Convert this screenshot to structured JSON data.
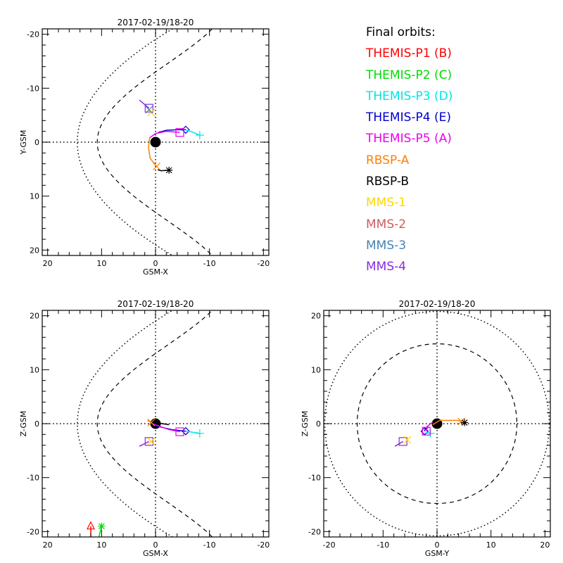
{
  "legend": {
    "title": "Final orbits:",
    "items": [
      {
        "label": "THEMIS-P1 (B)",
        "color": "#ff0000"
      },
      {
        "label": "THEMIS-P2 (C)",
        "color": "#00dd00"
      },
      {
        "label": "THEMIS-P3 (D)",
        "color": "#00e5e5"
      },
      {
        "label": "THEMIS-P4 (E)",
        "color": "#0000cc"
      },
      {
        "label": "THEMIS-P5 (A)",
        "color": "#ee00ee"
      },
      {
        "label": "RBSP-A",
        "color": "#ff8000"
      },
      {
        "label": "RBSP-B",
        "color": "#000000"
      },
      {
        "label": "MMS-1",
        "color": "#ffd700"
      },
      {
        "label": "MMS-2",
        "color": "#cd5c5c"
      },
      {
        "label": "MMS-3",
        "color": "#4682b4"
      },
      {
        "label": "MMS-4",
        "color": "#8a2be2"
      }
    ]
  },
  "chart_data": [
    {
      "type": "line",
      "title": "2017-02-19/18-20",
      "xlabel": "GSM-X",
      "ylabel": "Y-GSM",
      "xlim": [
        21,
        -21
      ],
      "ylim": [
        21,
        -21
      ],
      "xticks": [
        "20",
        "10",
        "0",
        "-10",
        "-20"
      ],
      "yticks": [
        "-20",
        "-10",
        "0",
        "10",
        "20"
      ],
      "boundaries": {
        "magnetopause": "dashed",
        "bow_shock": "dotted"
      },
      "earth": [
        0,
        0
      ],
      "series": [
        {
          "name": "MMS-4",
          "color": "#8a2be2",
          "points": [
            [
              3.0,
              -7.8
            ],
            [
              1.2,
              -6.3
            ]
          ],
          "marker": "square"
        },
        {
          "name": "MMS-1",
          "color": "#ffd700",
          "points": [
            [
              1.0,
              -6.0
            ],
            [
              0.8,
              -5.5
            ]
          ],
          "marker": "x"
        },
        {
          "name": "MMS-3",
          "color": "#4682b4",
          "points": [
            [
              1.2,
              -6.0
            ]
          ],
          "marker": "x"
        },
        {
          "name": "THEMIS-P4 (E)",
          "color": "#0000cc",
          "points": [
            [
              -0.5,
              -1.8
            ],
            [
              -2.0,
              -2.2
            ],
            [
              -4.0,
              -2.3
            ],
            [
              -5.6,
              -2.3
            ]
          ],
          "marker": "diamond"
        },
        {
          "name": "THEMIS-P3 (D)",
          "color": "#00e5e5",
          "points": [
            [
              -5.6,
              -2.3
            ],
            [
              -7.0,
              -1.8
            ],
            [
              -8.2,
              -1.3
            ]
          ],
          "marker": "plus"
        },
        {
          "name": "THEMIS-P5 (A)",
          "color": "#ee00ee",
          "points": [
            [
              1.1,
              -0.8
            ],
            [
              0,
              -1.6
            ],
            [
              -2.0,
              -2.0
            ],
            [
              -4.5,
              -1.8
            ]
          ],
          "marker": "square"
        },
        {
          "name": "RBSP-A",
          "color": "#ff8000",
          "points": [
            [
              1.1,
              -0.8
            ],
            [
              1.3,
              1.0
            ],
            [
              1.0,
              3.0
            ],
            [
              -0.2,
              4.5
            ]
          ],
          "marker": "x"
        },
        {
          "name": "RBSP-B",
          "color": "#000000",
          "points": [
            [
              -0.4,
              5.1
            ],
            [
              -1.0,
              5.3
            ],
            [
              -2.5,
              5.2
            ]
          ],
          "marker": "asterisk"
        }
      ]
    },
    {
      "type": "line",
      "title": "2017-02-19/18-20",
      "xlabel": "GSM-X",
      "ylabel": "Z-GSM",
      "xlim": [
        21,
        -21
      ],
      "ylim": [
        -21,
        21
      ],
      "xticks": [
        "20",
        "10",
        "0",
        "-10",
        "-20"
      ],
      "yticks": [
        "20",
        "10",
        "0",
        "-10",
        "-20"
      ],
      "boundaries": {
        "magnetopause": "dashed",
        "bow_shock": "dotted"
      },
      "earth": [
        0,
        0
      ],
      "series": [
        {
          "name": "THEMIS-P1 (B)",
          "color": "#ff0000",
          "points": [
            [
              12.0,
              -21
            ],
            [
              12.0,
              -19.0
            ]
          ],
          "marker": "triangle"
        },
        {
          "name": "THEMIS-P2 (C)",
          "color": "#00dd00",
          "points": [
            [
              10.5,
              -21
            ],
            [
              10.0,
              -19.0
            ]
          ],
          "marker": "asterisk"
        },
        {
          "name": "MMS-4",
          "color": "#8a2be2",
          "points": [
            [
              3.0,
              -4.2
            ],
            [
              1.2,
              -3.3
            ]
          ],
          "marker": "square"
        },
        {
          "name": "MMS-1",
          "color": "#ffd700",
          "points": [
            [
              0.8,
              -3.3
            ]
          ],
          "marker": "x"
        },
        {
          "name": "THEMIS-P4 (E)",
          "color": "#0000cc",
          "points": [
            [
              0.5,
              -0.3
            ],
            [
              -3.0,
              -1.1
            ],
            [
              -5.6,
              -1.4
            ]
          ],
          "marker": "diamond"
        },
        {
          "name": "THEMIS-P3 (D)",
          "color": "#00e5e5",
          "points": [
            [
              -5.6,
              -1.4
            ],
            [
              -8.2,
              -1.8
            ]
          ],
          "marker": "plus"
        },
        {
          "name": "THEMIS-P5 (A)",
          "color": "#ee00ee",
          "points": [
            [
              0.6,
              0.0
            ],
            [
              -2.5,
              -1.1
            ],
            [
              -4.5,
              -1.5
            ]
          ],
          "marker": "square"
        },
        {
          "name": "RBSP-A",
          "color": "#ff8000",
          "points": [
            [
              1.5,
              0.6
            ],
            [
              0.8,
              0.2
            ]
          ],
          "marker": "x"
        },
        {
          "name": "RBSP-B",
          "color": "#000000",
          "points": [
            [
              0,
              0.2
            ],
            [
              -2.5,
              -0.2
            ]
          ],
          "marker": "none"
        }
      ]
    },
    {
      "type": "line",
      "title": "2017-02-19/18-20",
      "xlabel": "GSM-Y",
      "ylabel": "Z-GSM",
      "xlim": [
        -21,
        21
      ],
      "ylim": [
        -21,
        21
      ],
      "xticks": [
        "-20",
        "-10",
        "0",
        "10",
        "20"
      ],
      "yticks": [
        "20",
        "10",
        "0",
        "-10",
        "-20"
      ],
      "boundaries": {
        "magnetopause": "dashed",
        "bow_shock": "dotted"
      },
      "earth": [
        0,
        0
      ],
      "series": [
        {
          "name": "MMS-4",
          "color": "#8a2be2",
          "points": [
            [
              -7.8,
              -4.2
            ],
            [
              -6.3,
              -3.3
            ]
          ],
          "marker": "square"
        },
        {
          "name": "MMS-1",
          "color": "#ffd700",
          "points": [
            [
              -5.5,
              -3.0
            ]
          ],
          "marker": "x"
        },
        {
          "name": "THEMIS-P4 (E)",
          "color": "#0000cc",
          "points": [
            [
              -1.5,
              -0.6
            ],
            [
              -2.2,
              -1.0
            ],
            [
              -2.3,
              -1.4
            ]
          ],
          "marker": "diamond"
        },
        {
          "name": "THEMIS-P3 (D)",
          "color": "#00e5e5",
          "points": [
            [
              -2.0,
              -1.6
            ],
            [
              -1.2,
              -1.8
            ]
          ],
          "marker": "plus"
        },
        {
          "name": "THEMIS-P5 (A)",
          "color": "#ee00ee",
          "points": [
            [
              -0.8,
              0.3
            ],
            [
              -1.8,
              -0.5
            ],
            [
              -2.0,
              -1.4
            ]
          ],
          "marker": "square"
        },
        {
          "name": "RBSP-A",
          "color": "#ff8000",
          "points": [
            [
              -0.8,
              -0.2
            ],
            [
              0.5,
              0.6
            ],
            [
              3.8,
              0.6
            ],
            [
              4.5,
              0.4
            ]
          ],
          "marker": "x"
        },
        {
          "name": "RBSP-B",
          "color": "#000000",
          "points": [
            [
              5.1,
              0.2
            ]
          ],
          "marker": "asterisk"
        }
      ]
    }
  ]
}
